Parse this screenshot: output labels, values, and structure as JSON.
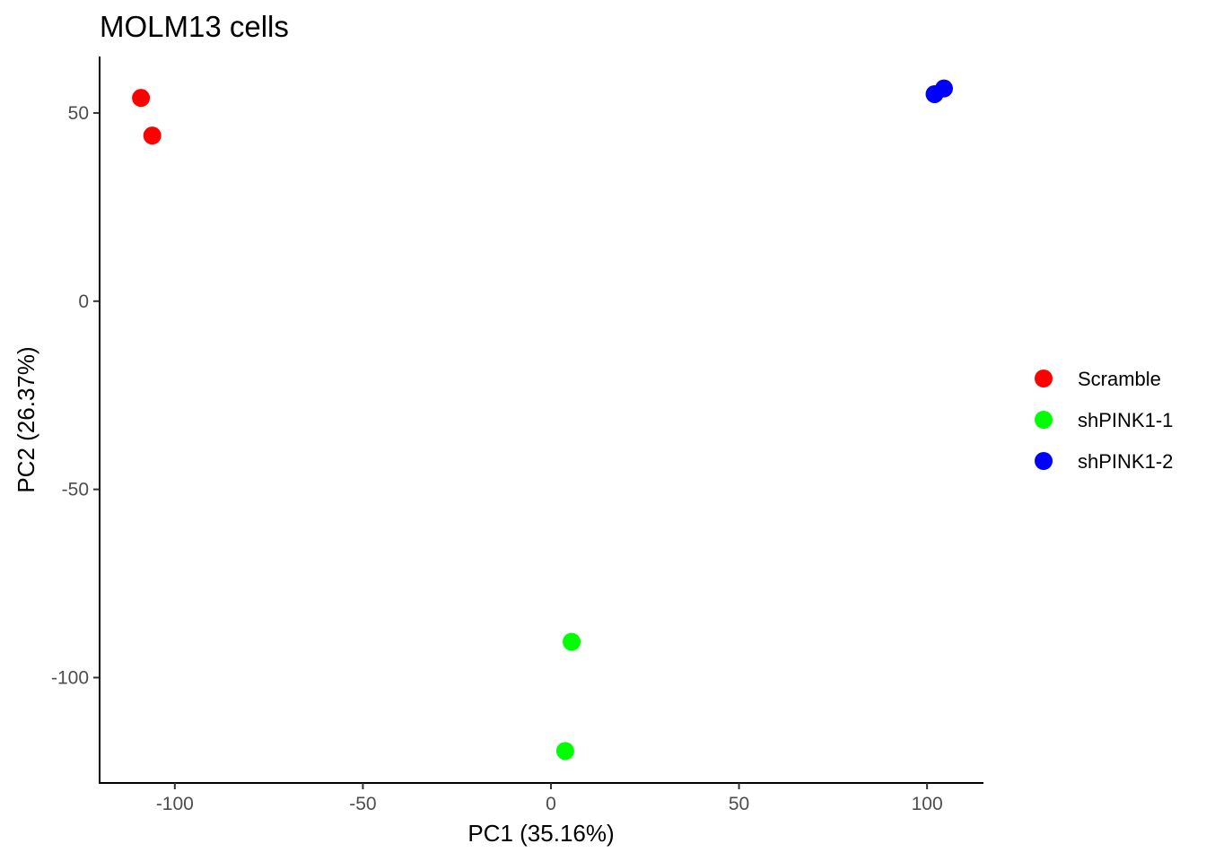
{
  "chart_data": {
    "type": "scatter",
    "title": "MOLM13 cells",
    "xlabel": "PC1 (35.16%)",
    "ylabel": "PC2 (26.37%)",
    "xlim": [
      -120,
      115
    ],
    "ylim": [
      -128,
      65
    ],
    "xticks": [
      -100,
      -50,
      0,
      50,
      100
    ],
    "yticks": [
      -100,
      -50,
      0,
      50
    ],
    "grid": false,
    "legend_position": "right",
    "series": [
      {
        "name": "Scramble",
        "color": "#FF0000",
        "points": [
          {
            "x": -109,
            "y": 54
          },
          {
            "x": -106,
            "y": 44
          }
        ]
      },
      {
        "name": "shPINK1-1",
        "color": "#00FF00",
        "points": [
          {
            "x": 5.5,
            "y": -90.5
          },
          {
            "x": 3.8,
            "y": -119.5
          }
        ]
      },
      {
        "name": "shPINK1-2",
        "color": "#0000FF",
        "points": [
          {
            "x": 102,
            "y": 55
          },
          {
            "x": 104.5,
            "y": 56.5
          }
        ]
      }
    ]
  }
}
